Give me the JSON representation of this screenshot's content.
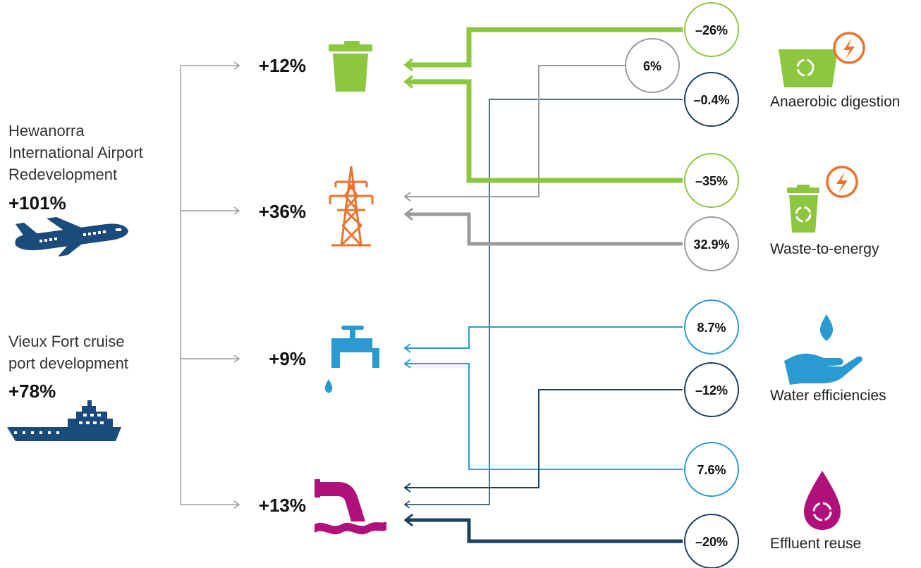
{
  "drivers": [
    {
      "id": "airport",
      "name_lines": [
        "Hewanorra",
        "International Airport",
        "Redevelopment"
      ],
      "pct": "+101%",
      "icon": "airplane-icon"
    },
    {
      "id": "port",
      "name_lines": [
        "Vieux Fort cruise",
        "port development"
      ],
      "pct": "+78%",
      "icon": "ship-icon"
    }
  ],
  "demands": [
    {
      "id": "waste",
      "pct": "+12%",
      "icon": "trash-bin-icon",
      "color": "#8DC63F"
    },
    {
      "id": "energy",
      "pct": "+36%",
      "icon": "power-pylon-icon",
      "color": "#E8742E"
    },
    {
      "id": "water",
      "pct": "+9%",
      "icon": "water-tap-icon",
      "color": "#2AA6DC"
    },
    {
      "id": "effluent",
      "pct": "+13%",
      "icon": "effluent-pipe-icon",
      "color": "#B0107A"
    }
  ],
  "impacts": [
    {
      "value": "–26%",
      "color": "#8DC63F"
    },
    {
      "value": "6%",
      "color": "#9A9A9A"
    },
    {
      "value": "–0.4%",
      "color": "#1C3F5E"
    },
    {
      "value": "–35%",
      "color": "#8DC63F"
    },
    {
      "value": "32.9%",
      "color": "#9A9A9A"
    },
    {
      "value": "8.7%",
      "color": "#2A9BD0"
    },
    {
      "value": "–12%",
      "color": "#1C3F5E"
    },
    {
      "value": "7.6%",
      "color": "#2A9BD0"
    },
    {
      "value": "–20%",
      "color": "#1C3F5E"
    }
  ],
  "solutions": [
    {
      "label": "Anaerobic digestion",
      "icon": "anaerobic-digester-icon"
    },
    {
      "label": "Waste-to-energy",
      "icon": "waste-to-energy-icon"
    },
    {
      "label": "Water efficiencies",
      "icon": "water-hand-icon"
    },
    {
      "label": "Effluent reuse",
      "icon": "effluent-drop-icon"
    }
  ],
  "colors": {
    "green": "#8DC63F",
    "grey": "#9A9A9A",
    "navy": "#1C3F5E",
    "blue": "#2A9BD0",
    "orange": "#E8742E",
    "magenta": "#B0107A",
    "dark_blue": "#1A4B7A"
  }
}
